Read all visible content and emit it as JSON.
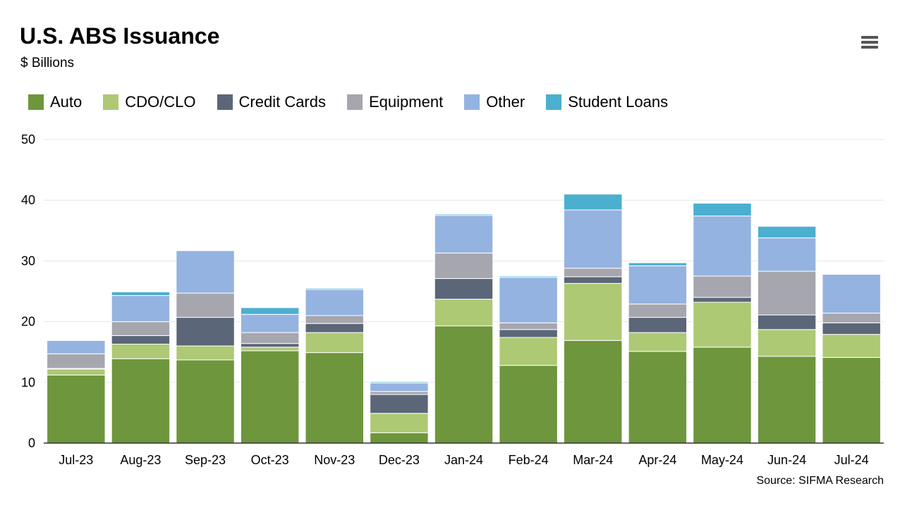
{
  "header": {
    "title": "U.S. ABS Issuance",
    "subtitle": "$ Billions",
    "menu_icon": "hamburger-menu-icon"
  },
  "footer": {
    "source": "Source: SIFMA Research"
  },
  "chart_data": {
    "type": "bar",
    "stacked": true,
    "title": "U.S. ABS Issuance",
    "subtitle": "$ Billions",
    "xlabel": "",
    "ylabel": "",
    "ylim": [
      0,
      50
    ],
    "yticks": [
      0,
      10,
      20,
      30,
      40,
      50
    ],
    "grid": true,
    "legend_position": "top-left",
    "categories": [
      "Jul-23",
      "Aug-23",
      "Sep-23",
      "Oct-23",
      "Nov-23",
      "Dec-23",
      "Jan-24",
      "Feb-24",
      "Mar-24",
      "Apr-24",
      "May-24",
      "Jun-24",
      "Jul-24"
    ],
    "series": [
      {
        "name": "Auto",
        "color": "#6e963c",
        "values": [
          11.2,
          13.9,
          13.7,
          15.2,
          14.9,
          1.7,
          19.3,
          12.8,
          16.9,
          15.1,
          15.8,
          14.3,
          14.1
        ]
      },
      {
        "name": "CDO/CLO",
        "color": "#adc974",
        "values": [
          1.0,
          2.4,
          2.3,
          0.6,
          3.3,
          3.2,
          4.4,
          4.6,
          9.4,
          3.1,
          7.4,
          4.4,
          3.8
        ]
      },
      {
        "name": "Credit Cards",
        "color": "#5b6678",
        "values": [
          0.1,
          1.4,
          4.7,
          0.6,
          1.5,
          3.1,
          3.4,
          1.3,
          1.1,
          2.5,
          0.8,
          2.4,
          1.9
        ]
      },
      {
        "name": "Equipment",
        "color": "#a6a6ae",
        "values": [
          2.4,
          2.3,
          4.0,
          1.8,
          1.3,
          0.5,
          4.2,
          1.1,
          1.4,
          2.2,
          3.5,
          7.2,
          1.6
        ]
      },
      {
        "name": "Other",
        "color": "#95b3e0",
        "values": [
          2.2,
          4.3,
          7.0,
          3.0,
          4.3,
          1.4,
          6.2,
          7.5,
          9.6,
          6.3,
          9.9,
          5.5,
          6.4
        ]
      },
      {
        "name": "Student Loans",
        "color": "#4bafcf",
        "values": [
          0.1,
          0.6,
          0.1,
          1.1,
          0.2,
          0.2,
          0.2,
          0.2,
          2.6,
          0.5,
          2.1,
          1.9,
          0.1
        ]
      }
    ]
  }
}
